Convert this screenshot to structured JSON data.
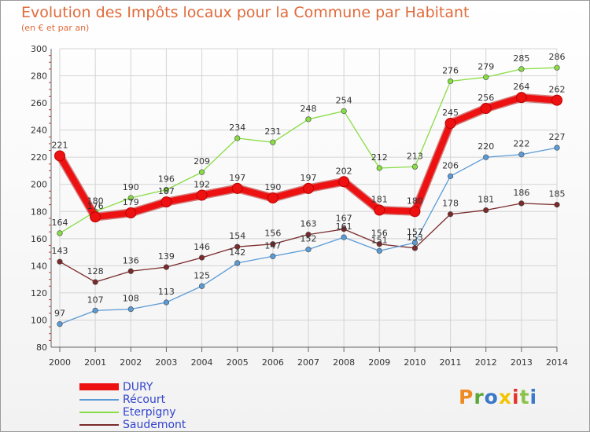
{
  "header": {
    "title": "Evolution des Impôts locaux pour la Commune par Habitant",
    "subtitle": "(en € et par an)"
  },
  "logo": {
    "text": "Proxiti",
    "colors": [
      "#f08a24",
      "#5aa838",
      "#3a78c8",
      "#f2c500",
      "#e2332a",
      "#8bc34a",
      "#3a78c8"
    ]
  },
  "colors": {
    "DURY": "#ee1111",
    "Récourt": "#5b9bd5",
    "Eterpigny": "#88dd44",
    "Saudemont": "#7a2a2a",
    "title": "#e06a3a",
    "legend_text": "#3344cc"
  },
  "chart_data": {
    "type": "line",
    "title": "Evolution des Impôts locaux pour la Commune par Habitant",
    "subtitle": "(en € et par an)",
    "x": [
      "2000",
      "2001",
      "2002",
      "2003",
      "2004",
      "2005",
      "2006",
      "2007",
      "2008",
      "2009",
      "2010",
      "2011",
      "2012",
      "2013",
      "2014"
    ],
    "ylim": [
      80,
      300
    ],
    "yticks": [
      80,
      100,
      120,
      140,
      160,
      180,
      200,
      220,
      240,
      260,
      280,
      300
    ],
    "grid": true,
    "legend_position": "bottom-left",
    "series": [
      {
        "name": "Eterpigny",
        "color": "#88dd44",
        "values": [
          164,
          180,
          190,
          196,
          209,
          234,
          231,
          248,
          254,
          212,
          213,
          276,
          279,
          285,
          286
        ]
      },
      {
        "name": "Saudemont",
        "color": "#7a2a2a",
        "values": [
          143,
          128,
          136,
          139,
          146,
          154,
          156,
          163,
          167,
          156,
          153,
          178,
          181,
          186,
          185
        ]
      },
      {
        "name": "Récourt",
        "color": "#5b9bd5",
        "values": [
          97,
          107,
          108,
          113,
          125,
          142,
          147,
          152,
          161,
          151,
          157,
          206,
          220,
          222,
          227
        ]
      },
      {
        "name": "DURY",
        "color": "#ee1111",
        "values": [
          221,
          176,
          179,
          187,
          192,
          197,
          190,
          197,
          202,
          181,
          180,
          245,
          256,
          264,
          262
        ]
      }
    ],
    "legend": [
      "DURY",
      "Récourt",
      "Eterpigny",
      "Saudemont"
    ]
  }
}
